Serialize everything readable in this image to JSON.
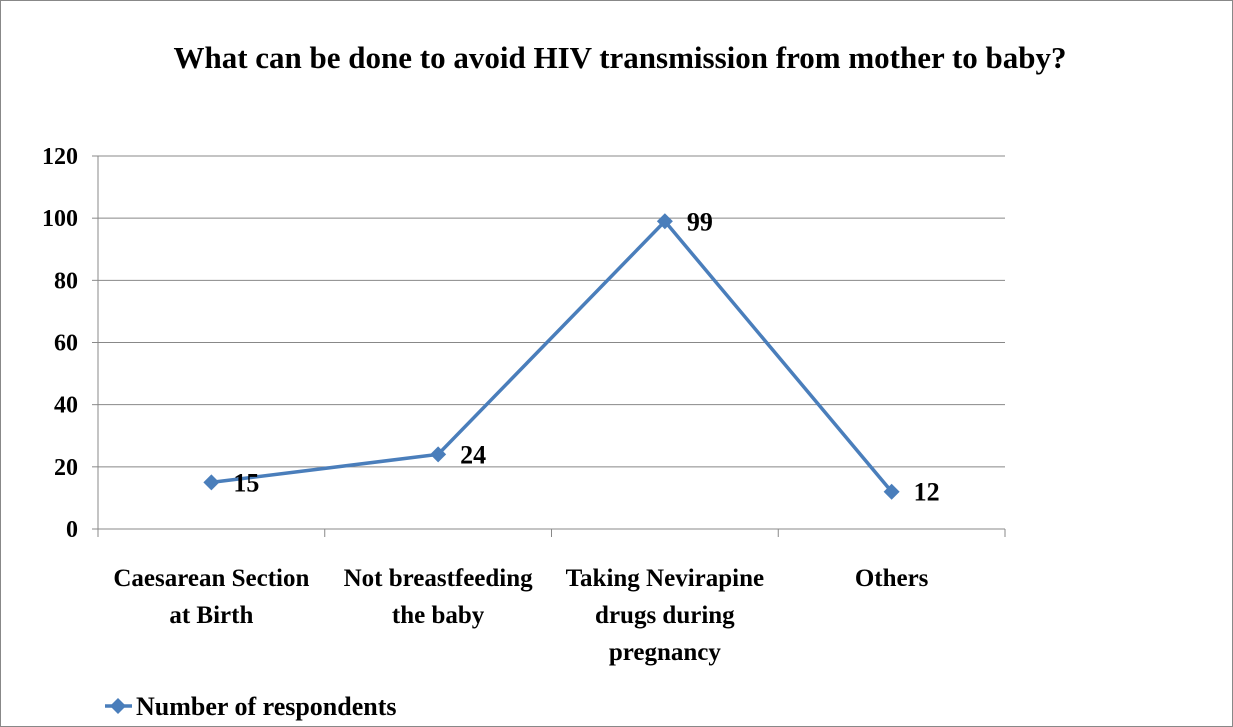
{
  "chart_data": {
    "type": "line",
    "title": "What can be done to avoid HIV transmission from mother to baby?",
    "categories": [
      "Caesarean Section at Birth",
      "Not breastfeeding the baby",
      "Taking Nevirapine drugs during pregnancy",
      "Others"
    ],
    "series": [
      {
        "name": "Number of respondents",
        "color": "#4a7ebb",
        "values": [
          15,
          24,
          99,
          12
        ]
      }
    ],
    "ylim": [
      0,
      120
    ],
    "yticks": [
      0,
      20,
      40,
      60,
      80,
      100,
      120
    ],
    "grid": true,
    "legend": "bottom-left"
  }
}
